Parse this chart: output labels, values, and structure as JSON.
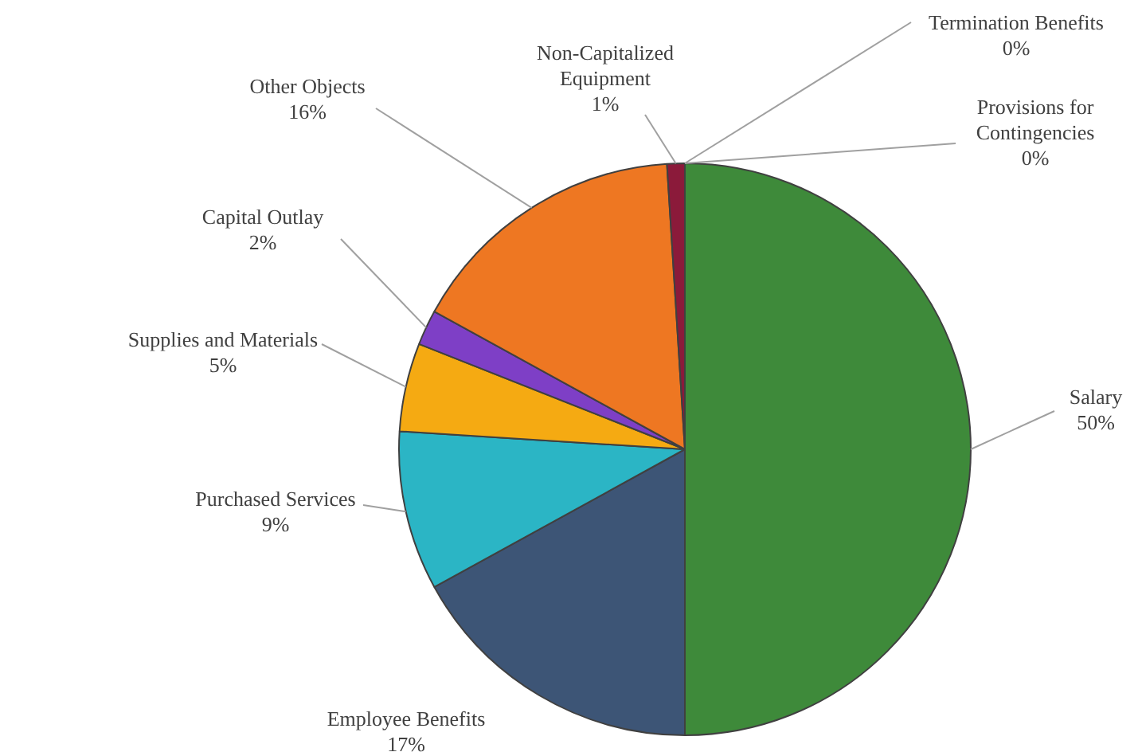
{
  "chart_data": {
    "type": "pie",
    "categories": [
      "Salary",
      "Employee Benefits",
      "Purchased Services",
      "Supplies and Materials",
      "Capital Outlay",
      "Other Objects",
      "Non-Capitalized Equipment",
      "Termination Benefits",
      "Provisions for Contingencies"
    ],
    "values": [
      50,
      17,
      9,
      5,
      2,
      16,
      1,
      0,
      0
    ],
    "value_labels": [
      "50%",
      "17%",
      "9%",
      "5%",
      "2%",
      "16%",
      "1%",
      "0%",
      "0%"
    ],
    "colors": [
      "#3e8a3a",
      "#3d5576",
      "#2bb5c5",
      "#f5aa12",
      "#7e3fc6",
      "#ee7722",
      "#8b1a3a",
      "#5a6fa8",
      "#9a9a9a"
    ],
    "legend": false
  }
}
